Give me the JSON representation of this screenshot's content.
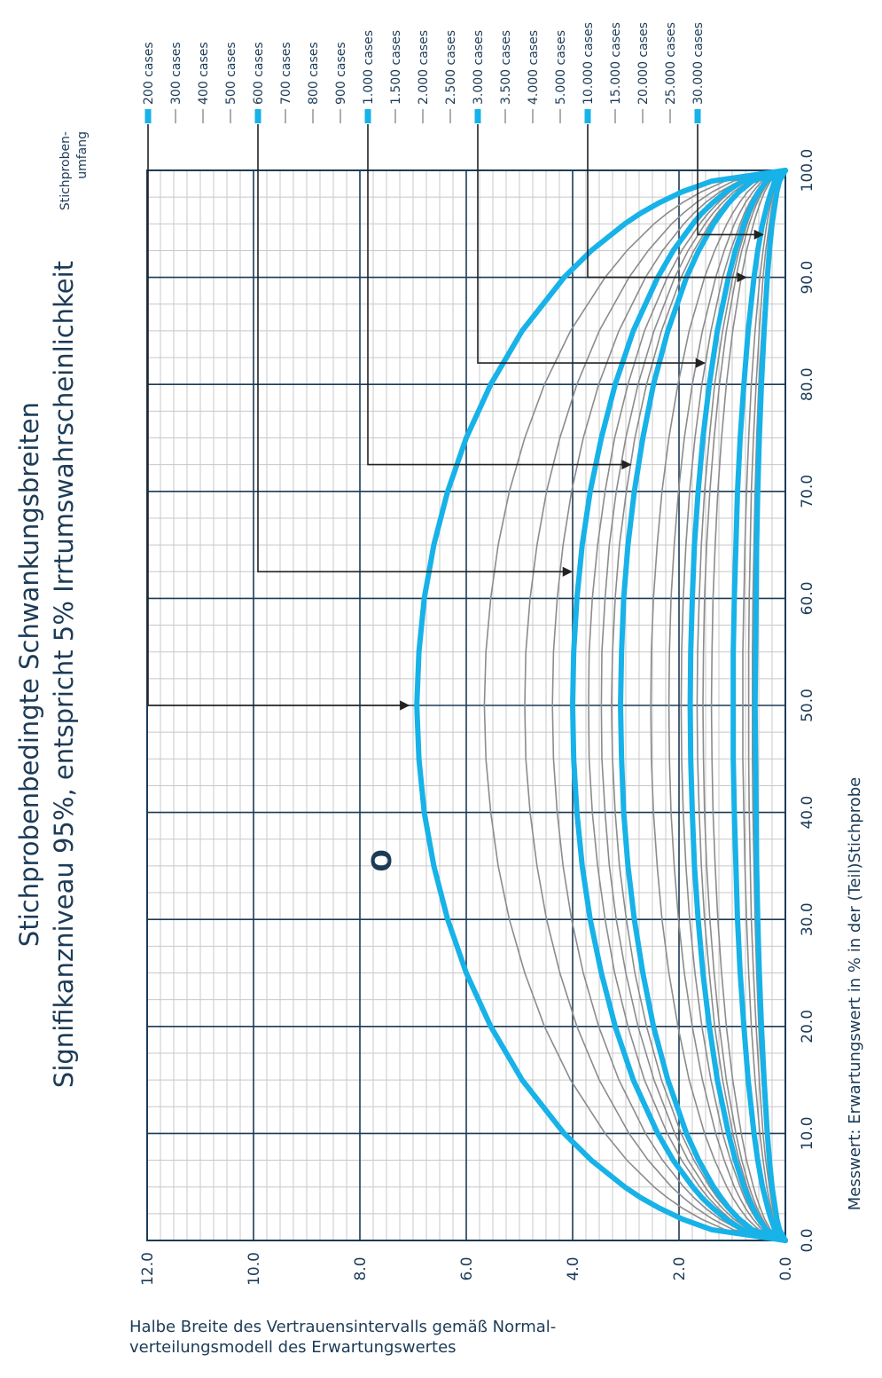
{
  "chart_data": {
    "type": "line",
    "title": "Stichprobenbedingte Schwankungsbreiten",
    "subtitle": "Signifikanzniveau 95%, entspricht 5% Irrtumswahrscheinlichkeit",
    "xlabel": "Messwert: Erwartungswert in % in der (Teil)Stichprobe",
    "ylabel": "Halbe Breite des Vertrauensintervalls gemäß Normal-verteilungsmodell des Erwartungswertes",
    "ylabel_lines": [
      "Halbe Breite des Vertrauensintervalls gemäß Normal-",
      "verteilungsmodell des Erwartungswertes"
    ],
    "xlim": [
      0,
      100
    ],
    "ylim": [
      0,
      12
    ],
    "xticks": [
      "0.0",
      "10.0",
      "20.0",
      "30.0",
      "40.0",
      "50.0",
      "60.0",
      "70.0",
      "80.0",
      "90.0",
      "100.0"
    ],
    "yticks": [
      "0.0",
      "2.0",
      "4.0",
      "6.0",
      "8.0",
      "10.0",
      "12.0"
    ],
    "grid": true,
    "legend_title": "Stichproben-umfang",
    "legend_title_lines": [
      "Stichproben-",
      "umfang"
    ],
    "x": [
      0,
      1,
      2,
      3,
      4,
      5,
      7.5,
      10,
      15,
      20,
      25,
      30,
      35,
      40,
      45,
      50,
      55,
      60,
      65,
      70,
      75,
      80,
      85,
      90,
      92.5,
      95,
      96,
      97,
      98,
      99,
      100
    ],
    "series": [
      {
        "name": "200 cases",
        "n": 200,
        "highlight": true,
        "values": [
          0,
          1.38,
          1.94,
          2.36,
          2.72,
          3.02,
          3.65,
          4.16,
          4.95,
          5.54,
          6.0,
          6.35,
          6.61,
          6.79,
          6.89,
          6.93,
          6.89,
          6.79,
          6.61,
          6.35,
          6.0,
          5.54,
          4.95,
          4.16,
          3.65,
          3.02,
          2.72,
          2.36,
          1.94,
          1.38,
          0
        ]
      },
      {
        "name": "300 cases",
        "n": 300,
        "highlight": false,
        "values": [
          0,
          1.13,
          1.58,
          1.93,
          2.22,
          2.47,
          2.98,
          3.39,
          4.04,
          4.53,
          4.9,
          5.19,
          5.4,
          5.54,
          5.63,
          5.66,
          5.63,
          5.54,
          5.4,
          5.19,
          4.9,
          4.53,
          4.04,
          3.39,
          2.98,
          2.47,
          2.22,
          1.93,
          1.58,
          1.13,
          0
        ]
      },
      {
        "name": "400 cases",
        "n": 400,
        "highlight": false,
        "values": [
          0,
          0.98,
          1.37,
          1.67,
          1.92,
          2.14,
          2.58,
          2.94,
          3.5,
          3.92,
          4.24,
          4.49,
          4.67,
          4.8,
          4.88,
          4.9,
          4.88,
          4.8,
          4.67,
          4.49,
          4.24,
          3.92,
          3.5,
          2.94,
          2.58,
          2.14,
          1.92,
          1.67,
          1.37,
          0.98,
          0
        ]
      },
      {
        "name": "500 cases",
        "n": 500,
        "highlight": false,
        "values": [
          0,
          0.87,
          1.23,
          1.5,
          1.72,
          1.91,
          2.31,
          2.63,
          3.13,
          3.51,
          3.8,
          4.02,
          4.18,
          4.29,
          4.36,
          4.38,
          4.36,
          4.29,
          4.18,
          4.02,
          3.8,
          3.51,
          3.13,
          2.63,
          2.31,
          1.91,
          1.72,
          1.5,
          1.23,
          0.87,
          0
        ]
      },
      {
        "name": "600 cases",
        "n": 600,
        "highlight": true,
        "values": [
          0,
          0.8,
          1.12,
          1.36,
          1.57,
          1.74,
          2.11,
          2.4,
          2.86,
          3.2,
          3.46,
          3.67,
          3.82,
          3.92,
          3.98,
          4.0,
          3.98,
          3.92,
          3.82,
          3.67,
          3.46,
          3.2,
          2.86,
          2.4,
          2.11,
          1.74,
          1.57,
          1.36,
          1.12,
          0.8,
          0
        ]
      },
      {
        "name": "700 cases",
        "n": 700,
        "highlight": false,
        "values": [
          0,
          0.74,
          1.04,
          1.26,
          1.45,
          1.61,
          1.95,
          2.22,
          2.65,
          2.96,
          3.21,
          3.39,
          3.53,
          3.63,
          3.69,
          3.7,
          3.69,
          3.63,
          3.53,
          3.39,
          3.21,
          2.96,
          2.65,
          2.22,
          1.95,
          1.61,
          1.45,
          1.26,
          1.04,
          0.74,
          0
        ]
      },
      {
        "name": "800 cases",
        "n": 800,
        "highlight": false,
        "values": [
          0,
          0.69,
          0.97,
          1.18,
          1.36,
          1.51,
          1.83,
          2.08,
          2.47,
          2.77,
          3.0,
          3.18,
          3.31,
          3.39,
          3.45,
          3.46,
          3.45,
          3.39,
          3.31,
          3.18,
          3.0,
          2.77,
          2.47,
          2.08,
          1.83,
          1.51,
          1.36,
          1.18,
          0.97,
          0.69,
          0
        ]
      },
      {
        "name": "900 cases",
        "n": 900,
        "highlight": false,
        "values": [
          0,
          0.65,
          0.91,
          1.11,
          1.28,
          1.42,
          1.72,
          1.96,
          2.33,
          2.61,
          2.83,
          2.99,
          3.12,
          3.2,
          3.25,
          3.27,
          3.25,
          3.2,
          3.12,
          2.99,
          2.83,
          2.61,
          2.33,
          1.96,
          1.72,
          1.42,
          1.28,
          1.11,
          0.91,
          0.65,
          0
        ]
      },
      {
        "name": "1.000 cases",
        "n": 1000,
        "highlight": true,
        "values": [
          0,
          0.62,
          0.87,
          1.06,
          1.21,
          1.35,
          1.63,
          1.86,
          2.21,
          2.48,
          2.68,
          2.84,
          2.96,
          3.04,
          3.08,
          3.1,
          3.08,
          3.04,
          2.96,
          2.84,
          2.68,
          2.48,
          2.21,
          1.86,
          1.63,
          1.35,
          1.21,
          1.06,
          0.87,
          0.62,
          0
        ]
      },
      {
        "name": "1.500 cases",
        "n": 1500,
        "highlight": false,
        "values": [
          0,
          0.5,
          0.71,
          0.86,
          0.99,
          1.1,
          1.33,
          1.52,
          1.81,
          2.02,
          2.19,
          2.32,
          2.41,
          2.48,
          2.52,
          2.53,
          2.52,
          2.48,
          2.41,
          2.32,
          2.19,
          2.02,
          1.81,
          1.52,
          1.33,
          1.1,
          0.99,
          0.86,
          0.71,
          0.5,
          0
        ]
      },
      {
        "name": "2.000 cases",
        "n": 2000,
        "highlight": false,
        "values": [
          0,
          0.44,
          0.61,
          0.75,
          0.86,
          0.96,
          1.15,
          1.31,
          1.56,
          1.75,
          1.9,
          2.01,
          2.09,
          2.15,
          2.18,
          2.19,
          2.18,
          2.15,
          2.09,
          2.01,
          1.9,
          1.75,
          1.56,
          1.31,
          1.15,
          0.96,
          0.86,
          0.75,
          0.61,
          0.44,
          0
        ]
      },
      {
        "name": "2.500 cases",
        "n": 2500,
        "highlight": false,
        "values": [
          0,
          0.39,
          0.55,
          0.67,
          0.77,
          0.85,
          1.03,
          1.18,
          1.4,
          1.57,
          1.7,
          1.8,
          1.87,
          1.92,
          1.95,
          1.96,
          1.95,
          1.92,
          1.87,
          1.8,
          1.7,
          1.57,
          1.4,
          1.18,
          1.03,
          0.85,
          0.77,
          0.67,
          0.55,
          0.39,
          0
        ]
      },
      {
        "name": "3.000 cases",
        "n": 3000,
        "highlight": true,
        "values": [
          0,
          0.36,
          0.5,
          0.61,
          0.7,
          0.78,
          0.94,
          1.07,
          1.28,
          1.43,
          1.55,
          1.64,
          1.71,
          1.75,
          1.78,
          1.79,
          1.78,
          1.75,
          1.71,
          1.64,
          1.55,
          1.43,
          1.28,
          1.07,
          0.94,
          0.78,
          0.7,
          0.61,
          0.5,
          0.36,
          0
        ]
      },
      {
        "name": "3.500 cases",
        "n": 3500,
        "highlight": false,
        "values": [
          0,
          0.33,
          0.46,
          0.56,
          0.65,
          0.72,
          0.87,
          0.99,
          1.18,
          1.33,
          1.43,
          1.52,
          1.58,
          1.62,
          1.65,
          1.66,
          1.65,
          1.62,
          1.58,
          1.52,
          1.43,
          1.33,
          1.18,
          0.99,
          0.87,
          0.72,
          0.65,
          0.56,
          0.46,
          0.33,
          0
        ]
      },
      {
        "name": "4.000 cases",
        "n": 4000,
        "highlight": false,
        "values": [
          0,
          0.31,
          0.43,
          0.53,
          0.61,
          0.68,
          0.82,
          0.93,
          1.11,
          1.24,
          1.34,
          1.42,
          1.48,
          1.52,
          1.54,
          1.55,
          1.54,
          1.52,
          1.48,
          1.42,
          1.34,
          1.24,
          1.11,
          0.93,
          0.82,
          0.68,
          0.61,
          0.53,
          0.43,
          0.31,
          0
        ]
      },
      {
        "name": "5.000 cases",
        "n": 5000,
        "highlight": false,
        "values": [
          0,
          0.28,
          0.39,
          0.47,
          0.54,
          0.6,
          0.73,
          0.83,
          0.99,
          1.11,
          1.2,
          1.27,
          1.32,
          1.36,
          1.38,
          1.39,
          1.38,
          1.36,
          1.32,
          1.27,
          1.2,
          1.11,
          0.99,
          0.83,
          0.73,
          0.6,
          0.54,
          0.47,
          0.39,
          0.28,
          0
        ]
      },
      {
        "name": "10.000 cases",
        "n": 10000,
        "highlight": true,
        "values": [
          0,
          0.2,
          0.27,
          0.33,
          0.38,
          0.43,
          0.52,
          0.59,
          0.7,
          0.78,
          0.85,
          0.9,
          0.93,
          0.96,
          0.98,
          0.98,
          0.98,
          0.96,
          0.93,
          0.9,
          0.85,
          0.78,
          0.7,
          0.59,
          0.52,
          0.43,
          0.38,
          0.33,
          0.27,
          0.2,
          0
        ]
      },
      {
        "name": "15.000 cases",
        "n": 15000,
        "highlight": false,
        "values": [
          0,
          0.16,
          0.22,
          0.27,
          0.31,
          0.35,
          0.42,
          0.48,
          0.57,
          0.64,
          0.69,
          0.73,
          0.76,
          0.78,
          0.8,
          0.8,
          0.8,
          0.78,
          0.76,
          0.73,
          0.69,
          0.64,
          0.57,
          0.48,
          0.42,
          0.35,
          0.31,
          0.27,
          0.22,
          0.16,
          0
        ]
      },
      {
        "name": "20.000 cases",
        "n": 20000,
        "highlight": false,
        "values": [
          0,
          0.14,
          0.19,
          0.24,
          0.27,
          0.3,
          0.37,
          0.42,
          0.49,
          0.55,
          0.6,
          0.64,
          0.66,
          0.68,
          0.69,
          0.69,
          0.69,
          0.68,
          0.66,
          0.64,
          0.6,
          0.55,
          0.49,
          0.42,
          0.37,
          0.3,
          0.27,
          0.24,
          0.19,
          0.14,
          0
        ]
      },
      {
        "name": "25.000 cases",
        "n": 25000,
        "highlight": false,
        "values": [
          0,
          0.12,
          0.17,
          0.21,
          0.24,
          0.27,
          0.33,
          0.37,
          0.44,
          0.5,
          0.54,
          0.57,
          0.59,
          0.61,
          0.62,
          0.62,
          0.62,
          0.61,
          0.59,
          0.57,
          0.54,
          0.5,
          0.44,
          0.37,
          0.33,
          0.27,
          0.24,
          0.21,
          0.17,
          0.12,
          0
        ]
      },
      {
        "name": "30.000 cases",
        "n": 30000,
        "highlight": true,
        "values": [
          0,
          0.11,
          0.16,
          0.19,
          0.22,
          0.25,
          0.3,
          0.34,
          0.4,
          0.45,
          0.49,
          0.52,
          0.54,
          0.55,
          0.56,
          0.57,
          0.56,
          0.55,
          0.54,
          0.52,
          0.49,
          0.45,
          0.4,
          0.34,
          0.3,
          0.25,
          0.22,
          0.19,
          0.16,
          0.11,
          0
        ]
      }
    ],
    "annotations": [
      {
        "series": "200 cases",
        "at_x": 50.0
      },
      {
        "series": "600 cases",
        "at_x": 62.5
      },
      {
        "series": "1.000 cases",
        "at_x": 72.5
      },
      {
        "series": "3.000 cases",
        "at_x": 82.0
      },
      {
        "series": "10.000 cases",
        "at_x": 90.0
      },
      {
        "series": "30.000 cases",
        "at_x": 94.0
      }
    ],
    "marker_text": "O",
    "marker": {
      "x": 35.5,
      "y": 7.6
    },
    "colors": {
      "highlight": "#17b2e8",
      "normal": "#8c8c8c",
      "grid_major": "#1c3b57",
      "grid_minor": "#c8c8c8",
      "text": "#1c3b57",
      "arrow": "#222222"
    }
  }
}
